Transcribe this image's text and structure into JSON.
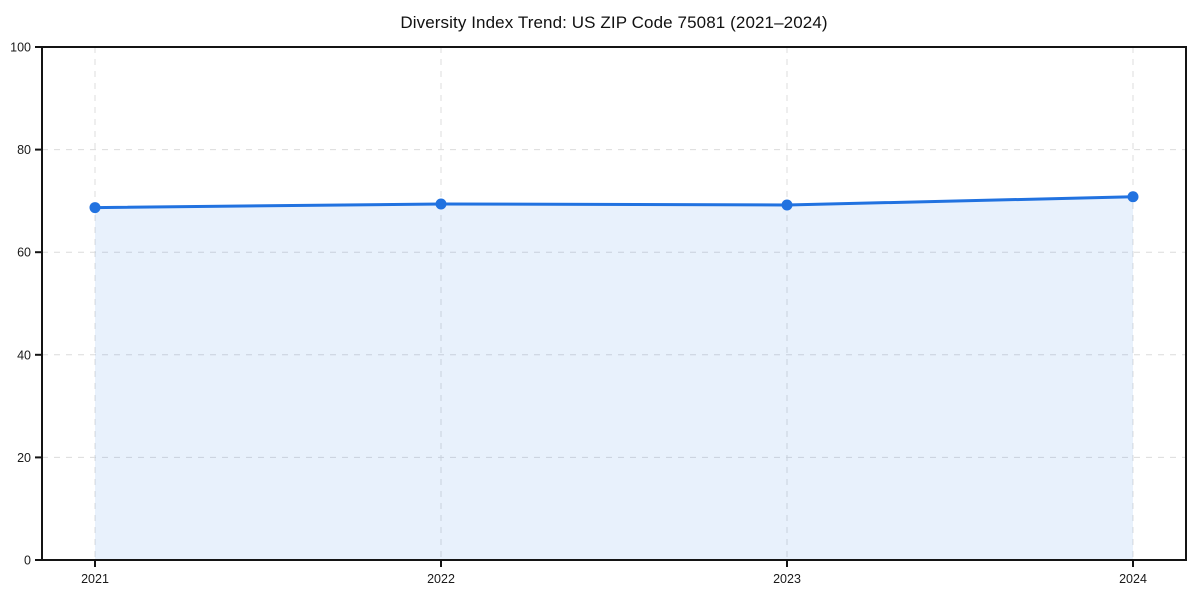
{
  "chart_data": {
    "type": "line",
    "title": "Diversity Index Trend: US ZIP Code 75081 (2021–2024)",
    "categories": [
      "2021",
      "2022",
      "2023",
      "2024"
    ],
    "series": [
      {
        "name": "Diversity Index",
        "values": [
          68.7,
          69.4,
          69.2,
          70.8
        ]
      }
    ],
    "xlabel": "",
    "ylabel": "",
    "ylim": [
      0,
      100
    ],
    "yticks": [
      0,
      20,
      40,
      60,
      80,
      100
    ],
    "grid": true,
    "grid_style": "dashed",
    "legend_position": "none",
    "area_fill": true,
    "colors": {
      "line": "#2172e0",
      "marker": "#2172e0",
      "fill": "#2172e0",
      "fill_opacity": 0.1,
      "grid": "#dcdcdc",
      "spine": "#141414",
      "text": "#1a1a1a",
      "title": "#111111",
      "background": "#ffffff"
    }
  }
}
